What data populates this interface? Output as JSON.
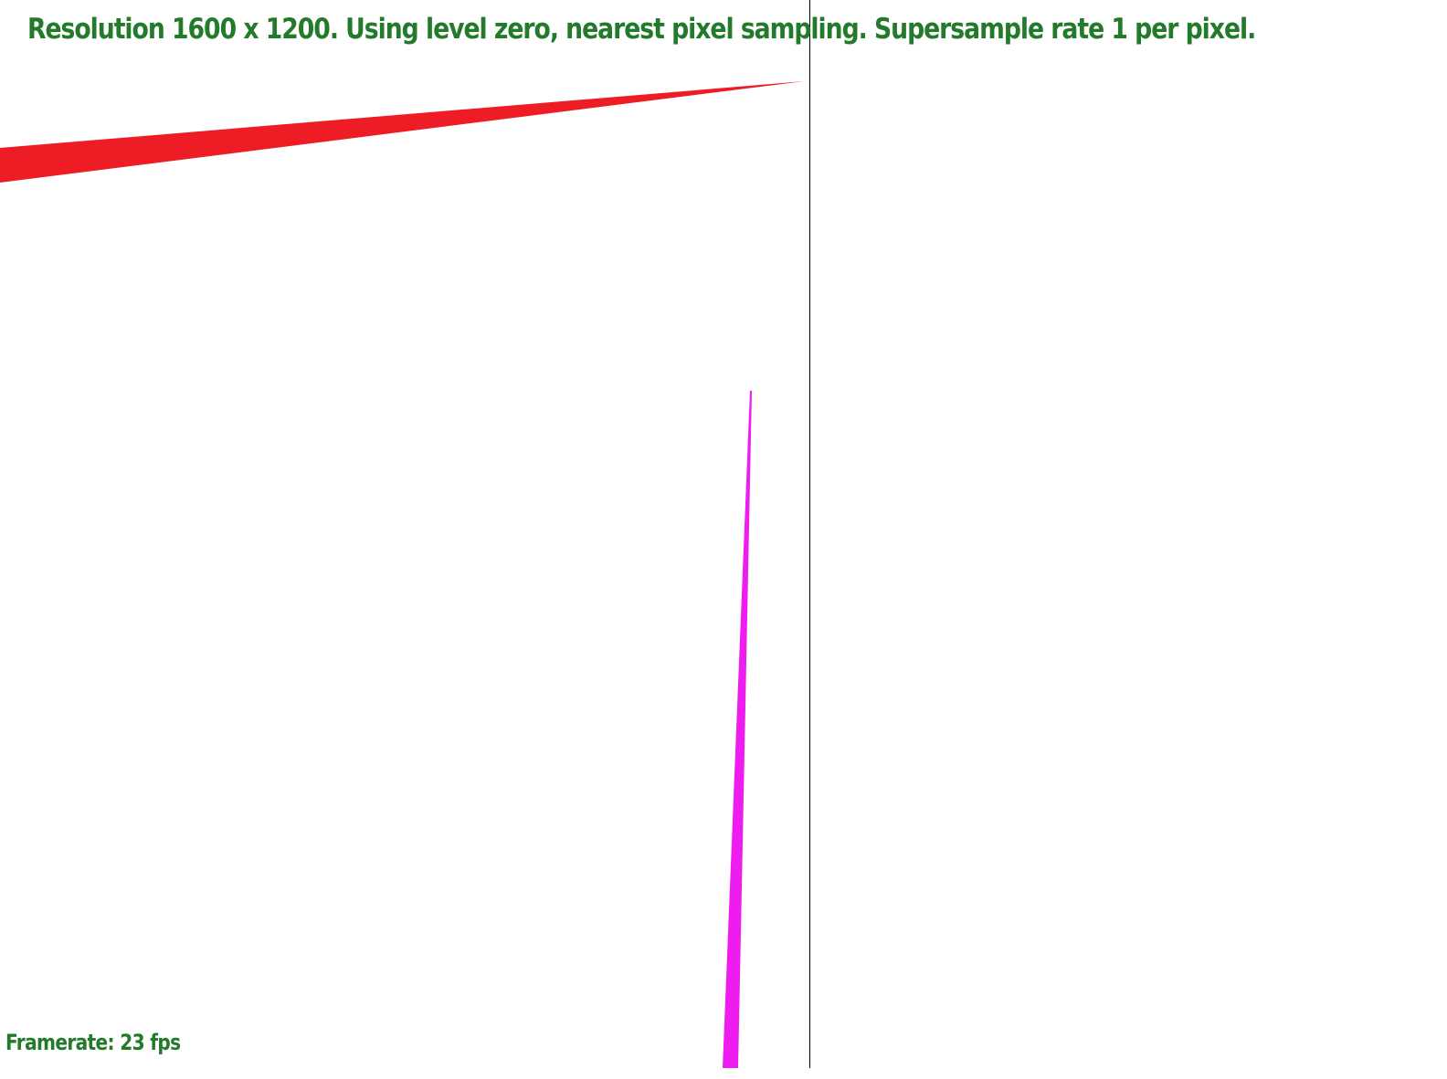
{
  "hud": {
    "status_line": "Resolution 1600 x 1200. Using level zero, nearest pixel sampling. Supersample rate 1 per pixel.",
    "framerate_label": "Framerate: 23 fps"
  },
  "colors": {
    "text": "#237a2a",
    "background": "#ffffff",
    "red_triangle": "#ee1c25",
    "magenta_triangle": "#ee1cee",
    "divider": "#000000"
  }
}
